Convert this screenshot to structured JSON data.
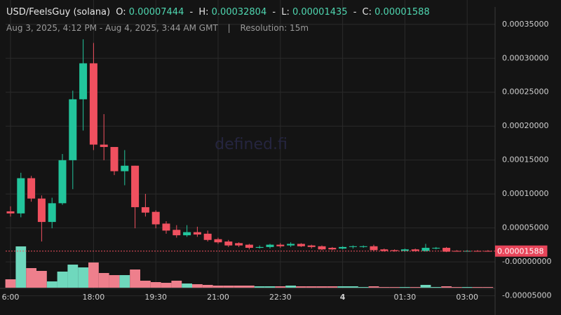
{
  "chart_data": {
    "type": "candlestick",
    "title": "USD/FeelsGuy (solana)",
    "summary": {
      "open_label": "O:",
      "open": 7.444e-05,
      "high_label": "H:",
      "high": 0.00032804,
      "low_label": "L:",
      "low": 1.435e-05,
      "close_label": "C:",
      "close": 1.588e-05,
      "separator": "-"
    },
    "subtitle": [
      "Aug 3, 2025, 4:12 PM - Aug 4, 2025, 3:44 AM GMT",
      "|",
      "Resolution: 15m"
    ],
    "watermark": "defined.fi",
    "categories": [
      "6:00",
      null,
      null,
      null,
      null,
      null,
      null,
      null,
      "18:00",
      null,
      null,
      null,
      null,
      null,
      "19:30",
      null,
      null,
      null,
      null,
      null,
      "21:00",
      null,
      null,
      null,
      null,
      null,
      "22:30",
      null,
      null,
      null,
      null,
      null,
      "4",
      null,
      null,
      null,
      null,
      null,
      "01:30",
      null,
      null,
      null,
      null,
      null,
      "03:00",
      null,
      null
    ],
    "open": [
      7.444e-05,
      7.14e-05,
      0.0001233,
      9.33e-05,
      5.88e-05,
      8.64e-05,
      0.0001498,
      0.0002396,
      0.0002926,
      0.0001728,
      0.0001693,
      0.0001336,
      0.0001417,
      8.06e-05,
      7.37e-05,
      5.64e-05,
      4.72e-05,
      3.92e-05,
      4.38e-05,
      4.15e-05,
      3.34e-05,
      3e-05,
      2.76e-05,
      2.53e-05,
      2.07e-05,
      2.19e-05,
      2.53e-05,
      2.42e-05,
      2.65e-05,
      2.42e-05,
      2.3e-05,
      2.07e-05,
      1.96e-05,
      2.19e-05,
      2.19e-05,
      2.3e-05,
      1.84e-05,
      1.73e-05,
      1.61e-05,
      1.84e-05,
      1.61e-05,
      1.96e-05,
      2.07e-05,
      1.61e-05,
      1.55e-05,
      1.61e-05,
      1.61e-05
    ],
    "high": [
      8.18e-05,
      0.0001313,
      0.0001267,
      9.79e-05,
      9.45e-05,
      0.000159,
      0.0002523,
      0.00032804,
      0.0003226,
      0.0002177,
      0.0001693,
      0.0001647,
      0.0001417,
      0.0001002,
      7.6e-05,
      5.99e-05,
      5.41e-05,
      5.41e-05,
      5.18e-05,
      4.61e-05,
      3.57e-05,
      3.23e-05,
      2.88e-05,
      2.65e-05,
      2.42e-05,
      2.65e-05,
      2.76e-05,
      2.88e-05,
      2.76e-05,
      2.53e-05,
      2.42e-05,
      2.19e-05,
      2.3e-05,
      2.42e-05,
      2.42e-05,
      2.53e-05,
      1.96e-05,
      1.84e-05,
      1.96e-05,
      1.96e-05,
      2.65e-05,
      2.19e-05,
      2.19e-05,
      1.73e-05,
      1.73e-05,
      1.73e-05,
      1.73e-05
    ],
    "low": [
      6.68e-05,
      6.57e-05,
      8.87e-05,
      3e-05,
      4.95e-05,
      8.41e-05,
      0.0001071,
      0.0001935,
      0.0001647,
      0.0001498,
      0.0001279,
      0.0001129,
      4.95e-05,
      6.68e-05,
      4.95e-05,
      4.15e-05,
      3.57e-05,
      3.69e-05,
      3.69e-05,
      3e-05,
      2.65e-05,
      2.19e-05,
      2.19e-05,
      1.84e-05,
      1.96e-05,
      1.96e-05,
      2.07e-05,
      2.19e-05,
      2.19e-05,
      1.96e-05,
      1.73e-05,
      1.73e-05,
      1.84e-05,
      1.96e-05,
      2.07e-05,
      1.61e-05,
      1.5e-05,
      1.5e-05,
      1.5e-05,
      1.5e-05,
      1.5e-05,
      1.84e-05,
      1.435e-05,
      1.5e-05,
      1.5e-05,
      1.5e-05,
      1.5e-05
    ],
    "close": [
      7.14e-05,
      0.0001233,
      9.33e-05,
      5.88e-05,
      8.64e-05,
      0.0001498,
      0.0002396,
      0.0002926,
      0.0001728,
      0.0001693,
      0.0001336,
      0.0001417,
      8.06e-05,
      7.26e-05,
      5.53e-05,
      4.61e-05,
      3.92e-05,
      4.38e-05,
      4.03e-05,
      3.23e-05,
      2.88e-05,
      2.42e-05,
      2.42e-05,
      2.07e-05,
      2.19e-05,
      2.53e-05,
      2.3e-05,
      2.65e-05,
      2.3e-05,
      2.19e-05,
      1.84e-05,
      1.84e-05,
      2.19e-05,
      2.3e-05,
      2.3e-05,
      1.73e-05,
      1.61e-05,
      1.61e-05,
      1.84e-05,
      1.61e-05,
      2.07e-05,
      2.07e-05,
      1.5e-05,
      1.55e-05,
      1.61e-05,
      1.55e-05,
      1.588e-05
    ],
    "volume": [
      12,
      59,
      28,
      24,
      9,
      23,
      33,
      29,
      36,
      21,
      18,
      18,
      26,
      10,
      8,
      7,
      10,
      6,
      5,
      4,
      3,
      3,
      3,
      3,
      2,
      2,
      2,
      3,
      2,
      2,
      2,
      2,
      2,
      2,
      1,
      2,
      1,
      1,
      1,
      1,
      4,
      1,
      2,
      1,
      1,
      1,
      1
    ],
    "up_color": "#22c59c",
    "down_color": "#f0505f",
    "volume_up_color": "#6fd8bd",
    "volume_down_color": "#ee7f8c",
    "ylim": [
      -7.83e-05,
      0.0003859
    ],
    "yticks": [
      {
        "value": 0.00035,
        "label": "0.00035000"
      },
      {
        "value": 0.0003,
        "label": "0.00030000"
      },
      {
        "value": 0.00025,
        "label": "0.00025000"
      },
      {
        "value": 0.0002,
        "label": "0.00020000"
      },
      {
        "value": 0.00015,
        "label": "0.00015000"
      },
      {
        "value": 0.0001,
        "label": "0.00010000"
      },
      {
        "value": 5e-05,
        "label": "0.00005000"
      },
      {
        "value": 0,
        "label": "-0.00000000"
      },
      {
        "value": -5e-05,
        "label": "-0.00005000"
      }
    ],
    "last_price": 1.588e-05,
    "grid": true
  }
}
